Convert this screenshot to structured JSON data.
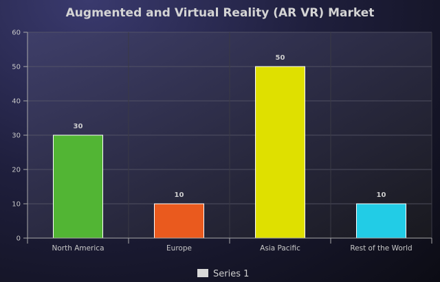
{
  "chart_data": {
    "type": "bar",
    "title": "Augmented and Virtual Reality (AR VR) Market",
    "xlabel": "",
    "ylabel": "",
    "categories": [
      "North America",
      "Europe",
      "Asia Pacific",
      "Rest of the World"
    ],
    "series": [
      {
        "name": "Series 1",
        "values": [
          30,
          10,
          50,
          10
        ]
      }
    ],
    "bar_colors": [
      "#52b534",
      "#ea5a1e",
      "#dfe000",
      "#22cce6"
    ],
    "ylim": [
      0,
      60
    ],
    "yticks": [
      0,
      10,
      20,
      30,
      40,
      50,
      60
    ],
    "grid": true,
    "data_labels": true,
    "legend_position": "bottom"
  }
}
